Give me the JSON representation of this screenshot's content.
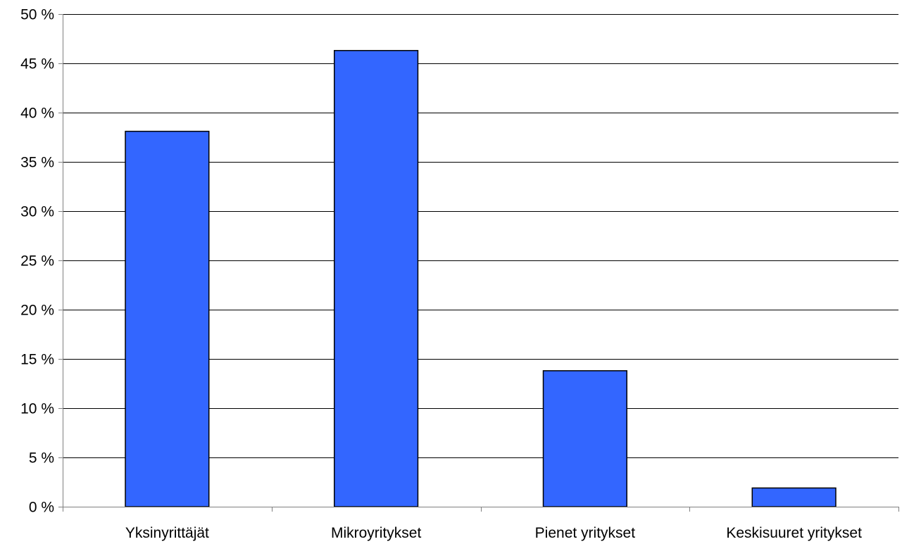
{
  "chart_data": {
    "type": "bar",
    "title": "",
    "xlabel": "",
    "ylabel": "",
    "categories": [
      "Yksinyrittäjät",
      "Mikroyritykset",
      "Pienet yritykset",
      "Keskisuuret yritykset"
    ],
    "values": [
      38.1,
      46.3,
      13.8,
      1.9
    ],
    "ylim": [
      0,
      50
    ],
    "ytick_values": [
      0,
      5,
      10,
      15,
      20,
      25,
      30,
      35,
      40,
      45,
      50
    ],
    "ytick_labels": [
      "0 %",
      "5 %",
      "10 %",
      "15 %",
      "20 %",
      "25 %",
      "30 %",
      "35 %",
      "40 %",
      "45 %",
      "50 %"
    ],
    "grid": true,
    "legend": "none",
    "colors": {
      "bar_fill": "#3366ff",
      "bar_stroke": "#000000",
      "grid": "#000000",
      "axis": "#808080",
      "background": "#ffffff"
    }
  }
}
